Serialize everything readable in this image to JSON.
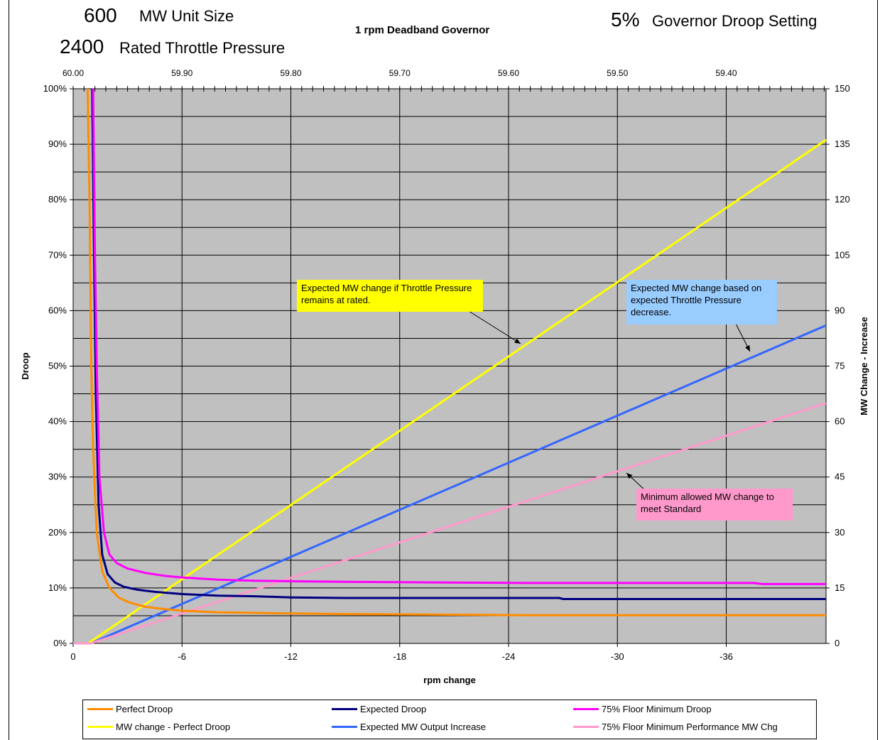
{
  "header": {
    "unit_size_value": "600",
    "unit_size_label": "MW Unit Size",
    "pressure_value": "2400",
    "pressure_label": "Rated Throttle Pressure",
    "deadband_title": "1 rpm Deadband Governor",
    "droop_value": "5%",
    "droop_label": "Governor Droop Setting"
  },
  "callouts": {
    "yellow": "Expected MW change if Throttle Pressure remains at rated.",
    "blue": "Expected MW change based on expected Throttle Pressure decrease.",
    "pink": "Minimum allowed MW change to meet Standard"
  },
  "colors": {
    "plot_bg": "#c0c0c0",
    "perfect_droop": "#ff8c00",
    "expected_droop": "#000080",
    "floor_droop": "#ff00ff",
    "mw_perfect": "#ffff00",
    "mw_expected": "#3366ff",
    "mw_floor": "#ff99cc",
    "callout_yellow": "#ffff00",
    "callout_blue": "#99ccff",
    "callout_pink": "#ff99cc"
  },
  "chart_data": {
    "type": "line",
    "xlabel": "rpm change",
    "ylabel": "Droop",
    "y2label": "MW Change - Increase",
    "xlim": [
      0,
      -41.5
    ],
    "ylim": [
      0,
      1.0
    ],
    "y2lim": [
      0,
      150
    ],
    "x_ticks": [
      0,
      -6,
      -12,
      -18,
      -24,
      -30,
      -36
    ],
    "x_tick_labels": [
      "0",
      "-6",
      "-12",
      "-18",
      "-24",
      "-30",
      "-36"
    ],
    "y_ticks": [
      0,
      0.1,
      0.2,
      0.3,
      0.4,
      0.5,
      0.6,
      0.7,
      0.8,
      0.9,
      1.0
    ],
    "y_tick_labels": [
      "0%",
      "10%",
      "20%",
      "30%",
      "40%",
      "50%",
      "60%",
      "70%",
      "80%",
      "90%",
      "100%"
    ],
    "y2_ticks": [
      0,
      15,
      30,
      45,
      60,
      75,
      90,
      105,
      120,
      135,
      150
    ],
    "y2_tick_labels": [
      "0",
      "15",
      "30",
      "45",
      "60",
      "75",
      "90",
      "105",
      "120",
      "135",
      "150"
    ],
    "top_ticks": [
      0,
      -6,
      -12,
      -18,
      -24,
      -30,
      -36
    ],
    "top_tick_labels": [
      "60.00",
      "59.90",
      "59.80",
      "59.70",
      "59.60",
      "59.50",
      "59.40"
    ],
    "grid": true,
    "legend_position": "bottom",
    "series": [
      {
        "name": "Perfect Droop",
        "axis": "left",
        "color": "#ff8c00",
        "x": [
          -0.8,
          -0.9,
          -1.0,
          -1.1,
          -1.3,
          -1.6,
          -2.0,
          -2.5,
          -3.0,
          -3.5,
          -4.0,
          -5.0,
          -6.0,
          -8.0,
          -10.0,
          -12.0,
          -15.0,
          -20.0,
          -25.0,
          -30.0,
          -35.0,
          -41.5
        ],
        "y": [
          1.0,
          0.8,
          0.5,
          0.35,
          0.2,
          0.13,
          0.1,
          0.083,
          0.075,
          0.07,
          0.066,
          0.062,
          0.059,
          0.056,
          0.055,
          0.054,
          0.053,
          0.052,
          0.051,
          0.051,
          0.051,
          0.051
        ]
      },
      {
        "name": "Expected Droop",
        "axis": "left",
        "color": "#000080",
        "x": [
          -1.05,
          -1.15,
          -1.25,
          -1.4,
          -1.6,
          -1.9,
          -2.3,
          -2.8,
          -3.5,
          -4.5,
          -6.0,
          -8.0,
          -10.0,
          -12.0,
          -15.0,
          -20.0,
          -26.8,
          -27.0,
          -35.0,
          -41.5
        ],
        "y": [
          1.0,
          0.7,
          0.45,
          0.25,
          0.16,
          0.125,
          0.11,
          0.102,
          0.097,
          0.093,
          0.089,
          0.086,
          0.085,
          0.083,
          0.082,
          0.082,
          0.082,
          0.08,
          0.08,
          0.08
        ]
      },
      {
        "name": "75% Floor Minimum Droop",
        "axis": "left",
        "color": "#ff00ff",
        "x": [
          -1.1,
          -1.2,
          -1.3,
          -1.45,
          -1.7,
          -2.0,
          -2.4,
          -3.0,
          -4.0,
          -5.0,
          -6.0,
          -8.0,
          -10.0,
          -12.0,
          -15.0,
          -20.0,
          -25.0,
          -30.0,
          -37.5,
          -38.0,
          -41.5
        ],
        "y": [
          1.0,
          0.7,
          0.5,
          0.3,
          0.2,
          0.16,
          0.145,
          0.135,
          0.127,
          0.122,
          0.119,
          0.115,
          0.113,
          0.112,
          0.111,
          0.11,
          0.109,
          0.109,
          0.109,
          0.107,
          0.107
        ]
      },
      {
        "name": "MW change - Perfect Droop",
        "axis": "right",
        "color": "#ffff00",
        "x": [
          0,
          -0.8,
          -1.0,
          -41.5
        ],
        "y": [
          0,
          0,
          0.6,
          136.2
        ]
      },
      {
        "name": "Expected MW Output Increase",
        "axis": "right",
        "color": "#3366ff",
        "x": [
          0,
          -1.0,
          -1.2,
          -41.5
        ],
        "y": [
          0,
          0,
          0.5,
          86
        ]
      },
      {
        "name": "75% Floor Minimum Performance MW Chg",
        "axis": "right",
        "color": "#ff99cc",
        "x": [
          0,
          -1.0,
          -1.2,
          -41.5
        ],
        "y": [
          0,
          0,
          0.4,
          65
        ]
      }
    ]
  }
}
